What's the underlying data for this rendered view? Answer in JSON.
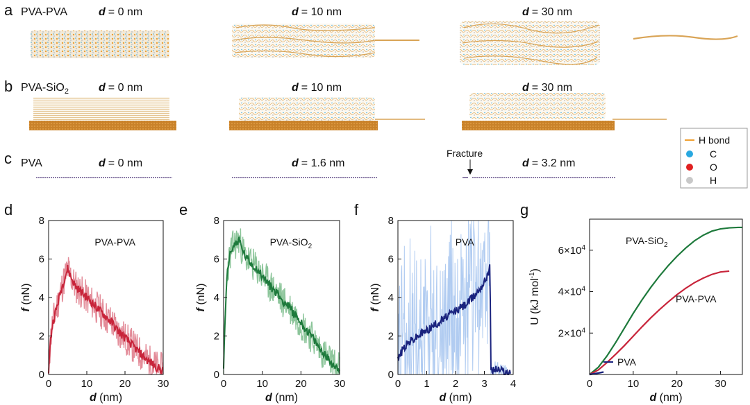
{
  "panels_top": {
    "a": {
      "letter": "a",
      "system": "PVA-PVA",
      "d_labels": [
        "= 0 nm",
        "= 10 nm",
        "= 30 nm"
      ]
    },
    "b": {
      "letter": "b",
      "system": "PVA-SiO",
      "system_sub": "2",
      "d_labels": [
        "= 0 nm",
        "= 10 nm",
        "= 30 nm"
      ]
    },
    "c": {
      "letter": "c",
      "system": "PVA",
      "d_labels": [
        "= 0 nm",
        "= 1.6 nm",
        "= 3.2 nm"
      ],
      "fracture": "Fracture"
    },
    "d_symbol": "d"
  },
  "legend": {
    "items": [
      {
        "label": "H bond",
        "color": "#f0a030",
        "kind": "line"
      },
      {
        "label": "C",
        "color": "#29a8e0",
        "kind": "dot"
      },
      {
        "label": "O",
        "color": "#e02020",
        "kind": "dot"
      },
      {
        "label": "H",
        "color": "#c8c8c8",
        "kind": "dot"
      }
    ]
  },
  "chart_data": [
    {
      "id": "d",
      "letter": "d",
      "type": "line",
      "title": "PVA-PVA",
      "xlabel_sym": "d",
      "xlabel_unit": " (nm)",
      "ylabel_sym": "f",
      "ylabel_unit": " (nN)",
      "xlim": [
        0,
        30
      ],
      "ylim": [
        0,
        8
      ],
      "xticks": [
        0,
        10,
        20,
        30
      ],
      "yticks": [
        0,
        2,
        4,
        6,
        8
      ],
      "series": [
        {
          "name": "PVA-PVA",
          "color": "#c8243a",
          "band_color": "#e07f8e",
          "x": [
            0,
            0.5,
            1,
            2,
            3,
            4,
            5,
            6,
            7,
            8,
            9,
            10,
            11,
            12,
            13,
            14,
            15,
            16,
            17,
            18,
            19,
            20,
            21,
            22,
            23,
            24,
            25,
            26,
            27,
            28,
            29,
            30
          ],
          "y": [
            0.2,
            1.8,
            2.6,
            3.4,
            4.2,
            4.9,
            5.5,
            5.0,
            4.6,
            4.4,
            4.2,
            4.0,
            3.8,
            3.6,
            3.4,
            3.2,
            3.0,
            2.8,
            2.6,
            2.3,
            2.1,
            1.9,
            1.7,
            1.5,
            1.3,
            1.1,
            0.9,
            0.7,
            0.6,
            0.4,
            0.3,
            0.2
          ]
        }
      ]
    },
    {
      "id": "e",
      "letter": "e",
      "type": "line",
      "title": "PVA-SiO",
      "title_sub": "2",
      "xlabel_sym": "d",
      "xlabel_unit": " (nm)",
      "ylabel_sym": "f",
      "ylabel_unit": " (nN)",
      "xlim": [
        0,
        30
      ],
      "ylim": [
        0,
        8
      ],
      "xticks": [
        0,
        10,
        20,
        30
      ],
      "yticks": [
        0,
        2,
        4,
        6,
        8
      ],
      "series": [
        {
          "name": "PVA-SiO2",
          "color": "#1e7a3c",
          "band_color": "#7fbf8f",
          "x": [
            0,
            0.5,
            1,
            2,
            3,
            4,
            5,
            6,
            7,
            8,
            9,
            10,
            11,
            12,
            13,
            14,
            15,
            16,
            17,
            18,
            19,
            20,
            21,
            22,
            23,
            24,
            25,
            26,
            27,
            28,
            29,
            30
          ],
          "y": [
            0.3,
            3.5,
            5.5,
            6.5,
            6.8,
            7.0,
            6.4,
            6.0,
            5.8,
            5.6,
            5.4,
            5.1,
            4.9,
            4.6,
            4.4,
            4.2,
            3.9,
            3.7,
            3.5,
            3.2,
            3.0,
            2.7,
            2.4,
            2.2,
            1.9,
            1.6,
            1.3,
            1.1,
            0.8,
            0.6,
            0.4,
            0.3
          ]
        }
      ]
    },
    {
      "id": "f",
      "letter": "f",
      "type": "line",
      "title": "PVA",
      "xlabel_sym": "d",
      "xlabel_unit": " (nm)",
      "ylabel_sym": "f",
      "ylabel_unit": " (nN)",
      "xlim": [
        0,
        4
      ],
      "ylim": [
        0,
        8
      ],
      "xticks": [
        0,
        1,
        2,
        3,
        4
      ],
      "yticks": [
        0,
        2,
        4,
        6,
        8
      ],
      "series": [
        {
          "name": "PVA",
          "color": "#1a237e",
          "band_color": "#a9c7f0",
          "x": [
            0,
            0.2,
            0.4,
            0.6,
            0.8,
            1.0,
            1.2,
            1.4,
            1.6,
            1.8,
            2.0,
            2.2,
            2.4,
            2.6,
            2.8,
            3.0,
            3.2,
            3.22,
            3.4,
            3.6,
            3.8,
            3.9
          ],
          "y": [
            0.8,
            1.4,
            1.7,
            1.9,
            2.1,
            2.3,
            2.5,
            2.7,
            2.9,
            3.1,
            3.3,
            3.5,
            3.7,
            4.0,
            4.4,
            4.8,
            5.6,
            0.2,
            0.3,
            0.2,
            0.1,
            0.0
          ]
        }
      ]
    },
    {
      "id": "g",
      "letter": "g",
      "type": "line",
      "xlabel_sym": "d",
      "xlabel_unit": " (nm)",
      "ylabel": "U (kJ mol",
      "ylabel_sup": "-1",
      "ylabel_end": ")",
      "xlim": [
        0,
        35
      ],
      "ylim": [
        0,
        75000
      ],
      "xticks": [
        0,
        10,
        20,
        30
      ],
      "ytick_values": [
        20000,
        40000,
        60000
      ],
      "ytick_labels": [
        {
          "base": "2×10",
          "exp": "4"
        },
        {
          "base": "4×10",
          "exp": "4"
        },
        {
          "base": "6×10",
          "exp": "4"
        }
      ],
      "series": [
        {
          "name": "PVA-SiO",
          "name_sub": "2",
          "color": "#1e7a3c",
          "x": [
            0,
            2,
            4,
            6,
            8,
            10,
            12,
            14,
            16,
            18,
            20,
            22,
            24,
            26,
            28,
            30,
            32,
            34,
            35
          ],
          "y": [
            0,
            3500,
            9000,
            15500,
            22500,
            29500,
            36000,
            42000,
            47500,
            52500,
            57000,
            61000,
            64500,
            67200,
            69200,
            70300,
            70800,
            71000,
            71000
          ]
        },
        {
          "name": "PVA-PVA",
          "color": "#c8243a",
          "x": [
            0,
            2,
            4,
            6,
            8,
            10,
            12,
            14,
            16,
            18,
            20,
            22,
            24,
            26,
            28,
            30,
            32
          ],
          "y": [
            0,
            2200,
            5800,
            9800,
            14000,
            18500,
            23000,
            27300,
            31300,
            35000,
            38500,
            41600,
            44300,
            46500,
            48300,
            49500,
            49900
          ]
        },
        {
          "name": "PVA",
          "color": "#1a237e",
          "x": [
            0,
            1,
            2,
            3,
            3.2
          ],
          "y": [
            0,
            300,
            700,
            1100,
            1200
          ]
        }
      ]
    }
  ]
}
